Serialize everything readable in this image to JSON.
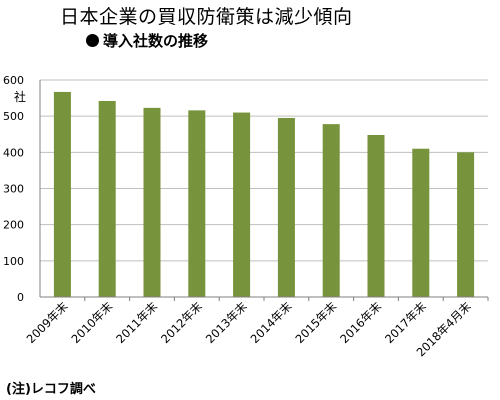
{
  "chart_data": {
    "type": "bar",
    "title": "日本企業の買収防衛策は減少傾向",
    "subtitle": "導入社数の推移",
    "ylabel": "社",
    "categories": [
      "2009年末",
      "2010年末",
      "2011年末",
      "2012年末",
      "2013年末",
      "2014年末",
      "2015年末",
      "2016年末",
      "2017年末",
      "2018年4月末"
    ],
    "values": [
      567,
      542,
      523,
      516,
      510,
      495,
      478,
      448,
      410,
      400
    ],
    "ylim": [
      0,
      600
    ],
    "yticks": [
      0,
      100,
      200,
      300,
      400,
      500,
      600
    ],
    "grid": true,
    "bar_color": "#77933c",
    "note": "(注)レコフ調べ"
  }
}
